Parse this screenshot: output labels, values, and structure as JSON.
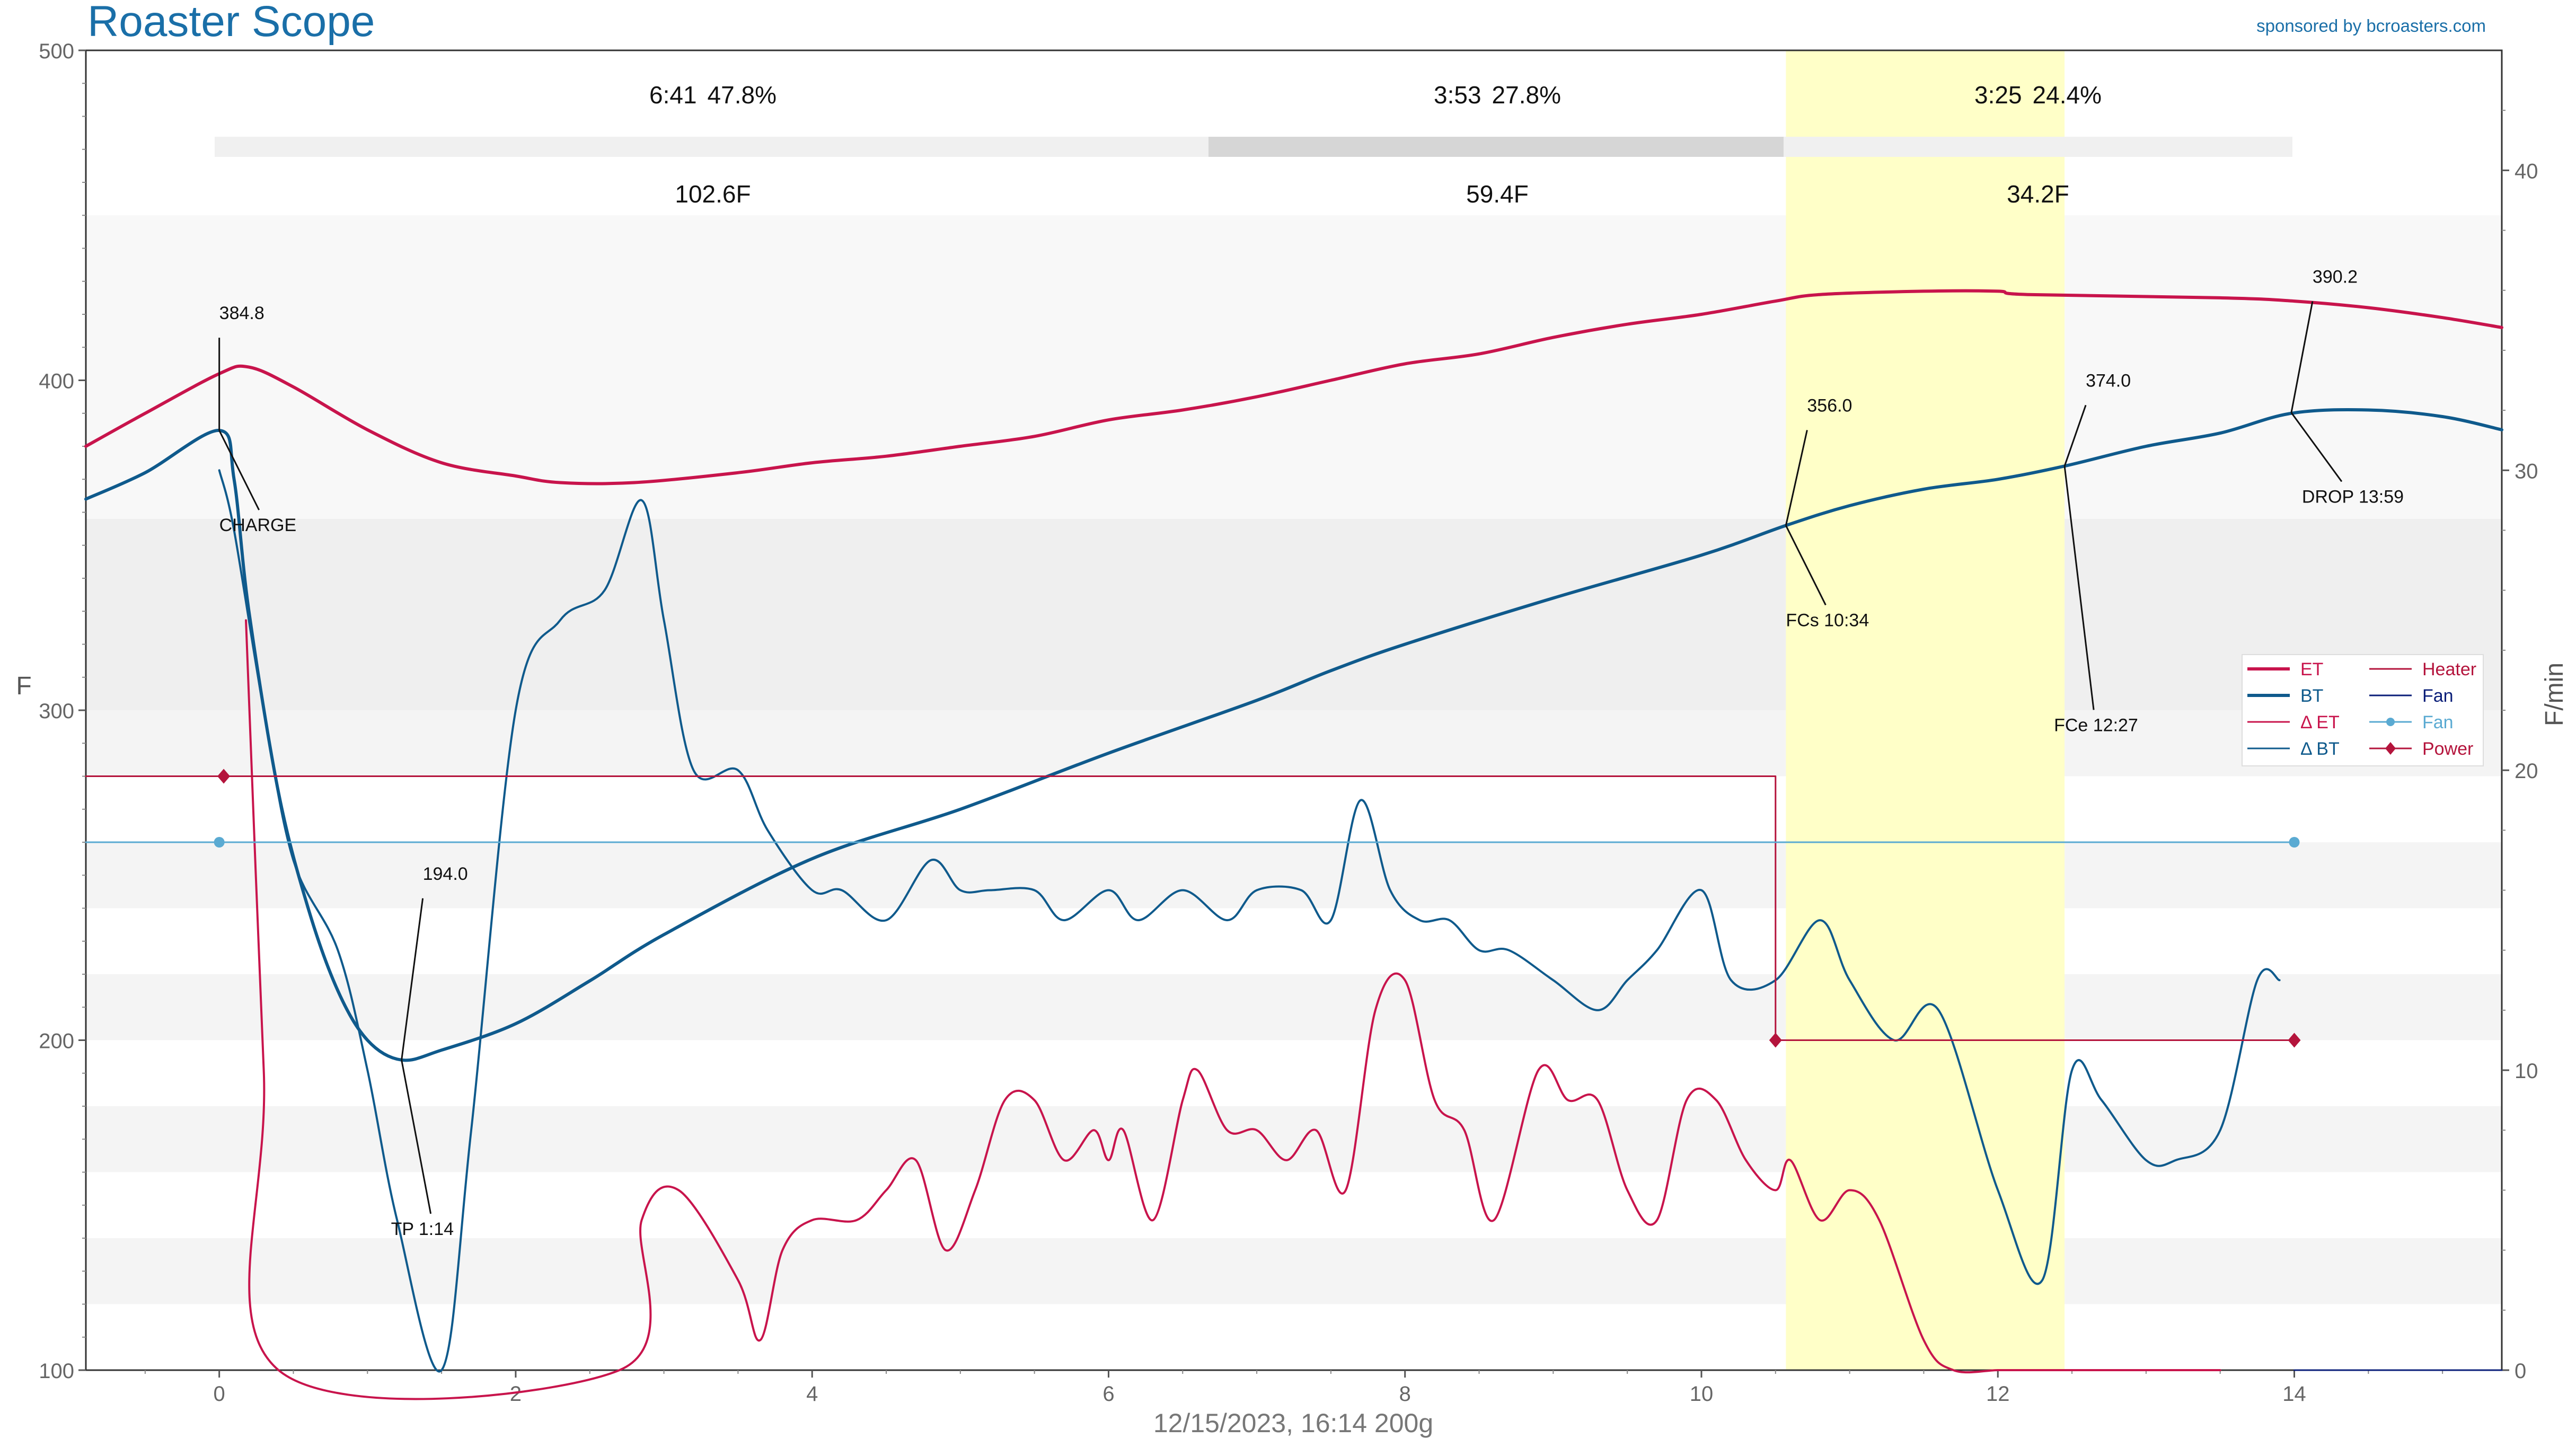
{
  "app": {
    "title": "Roaster Scope",
    "sponsor": "sponsored by bcroasters.com",
    "footer": "12/15/2023, 16:14   200g"
  },
  "colors": {
    "et": "#c8144c",
    "bt": "#0f5a8c",
    "heater": "#b4143c",
    "fan_dark": "#0a1e78",
    "fan_light": "#5aaad2",
    "power": "#b4143c",
    "highlight": "#ffffc8",
    "title": "#1a6fa8",
    "axis": "#666666"
  },
  "phases": [
    {
      "time": "6:41",
      "pct": "47.8%",
      "delta": "102.6F"
    },
    {
      "time": "3:53",
      "pct": "27.8%",
      "delta": "59.4F"
    },
    {
      "time": "3:25",
      "pct": "24.4%",
      "delta": "34.2F"
    }
  ],
  "events": [
    {
      "label": "CHARGE",
      "value": "384.8",
      "t": 0.0,
      "temp": 384.8
    },
    {
      "label": "TP 1:14",
      "value": "194.0",
      "t": 1.23,
      "temp": 194.0
    },
    {
      "label": "FCs 10:34",
      "value": "356.0",
      "t": 10.57,
      "temp": 356.0
    },
    {
      "label": "FCe 12:27",
      "value": "374.0",
      "t": 12.45,
      "temp": 374.0
    },
    {
      "label": "DROP 13:59",
      "value": "390.2",
      "t": 13.98,
      "temp": 390.2
    }
  ],
  "legend": [
    {
      "name": "ET",
      "key": "et"
    },
    {
      "name": "BT",
      "key": "bt"
    },
    {
      "name": "Δ ET",
      "key": "et"
    },
    {
      "name": "Δ BT",
      "key": "bt"
    },
    {
      "name": "Heater",
      "key": "heater"
    },
    {
      "name": "Fan",
      "key": "fan_dark"
    },
    {
      "name": "Fan",
      "key": "fan_light"
    },
    {
      "name": "Power",
      "key": "power"
    }
  ],
  "chart_data": {
    "type": "line",
    "title": "Roaster Scope",
    "xlabel": "12/15/2023, 16:14   200g",
    "ylabel": "F",
    "y2label": "F/min",
    "xlim": [
      -0.9,
      15.4
    ],
    "ylim": [
      100,
      500
    ],
    "y2lim": [
      0,
      44
    ],
    "xticks": [
      0,
      2,
      4,
      6,
      8,
      10,
      12,
      14
    ],
    "yticks": [
      100,
      200,
      300,
      400,
      500
    ],
    "y2ticks": [
      0,
      10,
      20,
      30,
      40
    ],
    "highlight_x": [
      10.57,
      12.45
    ],
    "series": [
      {
        "name": "ET",
        "key": "et",
        "axis": "left",
        "x": [
          -0.9,
          -0.5,
          0.0,
          0.2,
          0.5,
          1.0,
          1.5,
          2.0,
          2.3,
          2.8,
          3.5,
          4.0,
          4.5,
          5.0,
          5.5,
          6.0,
          6.5,
          7.0,
          7.5,
          8.0,
          8.5,
          9.0,
          9.5,
          10.0,
          10.5,
          10.8,
          11.5,
          12.0,
          12.2,
          13.5,
          14.0,
          14.5,
          15.0,
          15.4
        ],
        "y": [
          380,
          390,
          402,
          404,
          398,
          385,
          375,
          371,
          369,
          369,
          372,
          375,
          377,
          380,
          383,
          388,
          391,
          395,
          400,
          405,
          408,
          413,
          417,
          420,
          424,
          426,
          427,
          427,
          426,
          425,
          424,
          422,
          419,
          416
        ]
      },
      {
        "name": "BT",
        "key": "bt",
        "axis": "left",
        "x": [
          -0.9,
          -0.5,
          0.0,
          0.1,
          0.2,
          0.4,
          0.6,
          0.8,
          1.0,
          1.23,
          1.5,
          2.0,
          2.5,
          3.0,
          4.0,
          5.0,
          6.0,
          7.0,
          7.5,
          8.0,
          9.0,
          10.0,
          10.57,
          11.0,
          11.5,
          12.0,
          12.45,
          13.0,
          13.5,
          13.98,
          14.5,
          15.0,
          15.4
        ],
        "y": [
          364,
          372,
          384.8,
          370,
          330,
          275,
          240,
          215,
          200,
          194,
          197,
          205,
          218,
          232,
          255,
          270,
          287,
          303,
          312,
          320,
          334,
          347,
          356,
          362,
          367,
          370,
          374,
          380,
          384,
          390,
          391,
          389,
          385
        ]
      },
      {
        "name": "Δ ET",
        "key": "et",
        "axis": "right",
        "x": [
          0.18,
          0.3,
          0.4,
          2.7,
          2.85,
          3.1,
          3.5,
          3.65,
          3.8,
          4.0,
          4.3,
          4.5,
          4.7,
          4.9,
          5.1,
          5.3,
          5.5,
          5.7,
          5.9,
          6.0,
          6.1,
          6.3,
          6.5,
          6.6,
          6.8,
          7.0,
          7.2,
          7.4,
          7.6,
          7.8,
          8.0,
          8.2,
          8.4,
          8.6,
          8.9,
          9.1,
          9.3,
          9.5,
          9.7,
          9.9,
          10.1,
          10.3,
          10.5,
          10.6,
          10.8,
          11.0,
          11.2,
          11.5,
          11.7,
          12.0,
          12.2,
          12.3,
          13.0,
          13.5
        ],
        "y": [
          25,
          10,
          0,
          0,
          5,
          6,
          3,
          1,
          4,
          5,
          5,
          6,
          7,
          4,
          6,
          9,
          9,
          7,
          8,
          7,
          8,
          5,
          9,
          10,
          8,
          8,
          7,
          8,
          6,
          12,
          13,
          9,
          8,
          5,
          10,
          9,
          9,
          6,
          5,
          9,
          9,
          7,
          6,
          7,
          5,
          6,
          5,
          1,
          0,
          0,
          0,
          0,
          0,
          0
        ]
      },
      {
        "name": "Δ BT",
        "key": "bt",
        "axis": "right",
        "x": [
          0.0,
          0.1,
          0.3,
          0.5,
          0.8,
          1.0,
          1.2,
          1.5,
          1.7,
          2.0,
          2.3,
          2.6,
          2.85,
          3.0,
          3.2,
          3.5,
          3.7,
          4.0,
          4.2,
          4.5,
          4.8,
          5.0,
          5.2,
          5.5,
          5.7,
          6.0,
          6.2,
          6.5,
          6.8,
          7.0,
          7.3,
          7.5,
          7.7,
          7.9,
          8.1,
          8.3,
          8.5,
          8.7,
          9.0,
          9.3,
          9.5,
          9.7,
          10.0,
          10.2,
          10.5,
          10.8,
          11.0,
          11.3,
          11.6,
          12.0,
          12.3,
          12.5,
          12.7,
          13.0,
          13.2,
          13.5,
          13.75,
          13.9
        ],
        "y": [
          30,
          28,
          22,
          17,
          14,
          10,
          5,
          0,
          8,
          22,
          25,
          26,
          29,
          25,
          20,
          20,
          18,
          16,
          16,
          15,
          17,
          16,
          16,
          16,
          15,
          16,
          15,
          16,
          15,
          16,
          16,
          15,
          19,
          16,
          15,
          15,
          14,
          14,
          13,
          12,
          13,
          14,
          16,
          13,
          13,
          15,
          13,
          11,
          12,
          6,
          3,
          10,
          9,
          7,
          7,
          8,
          13,
          13
        ]
      },
      {
        "name": "Heater",
        "key": "heater",
        "axis": "left",
        "step": true,
        "x": [
          -0.9,
          10.5,
          10.5,
          14.0
        ],
        "y": [
          280,
          280,
          200,
          200
        ]
      },
      {
        "name": "Fan",
        "key": "fan_light",
        "axis": "left",
        "markers": [
          0,
          14
        ],
        "x": [
          -0.9,
          14.0
        ],
        "y": [
          260,
          260
        ]
      },
      {
        "name": "Power",
        "key": "power",
        "axis": "left",
        "markers_only": true,
        "x": [
          0.03,
          10.5,
          14.0
        ],
        "y": [
          280,
          200,
          200
        ]
      },
      {
        "name": "Fan",
        "key": "fan_dark",
        "axis": "right",
        "x": [
          14.0,
          15.4
        ],
        "y": [
          0,
          0
        ]
      }
    ]
  }
}
